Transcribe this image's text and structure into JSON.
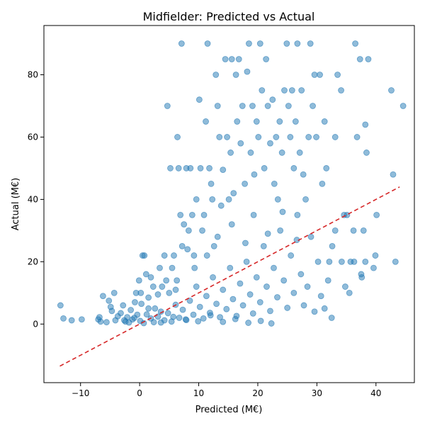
{
  "chart_data": {
    "type": "scatter",
    "title": "Midfielder: Predicted vs Actual",
    "xlabel": "Predicted (M€)",
    "ylabel": "Actual (M€)",
    "xlim": [
      -16.2,
      46.5
    ],
    "ylim": [
      -18.8,
      95.8
    ],
    "xticks": [
      -10,
      0,
      10,
      20,
      30,
      40
    ],
    "yticks": [
      0,
      20,
      40,
      60,
      80
    ],
    "grid": false,
    "legend": "none",
    "colors": {
      "points": "#1f77b4",
      "reference": "#d62728"
    },
    "reference_line": {
      "x": [
        -13.5,
        44
      ],
      "y": [
        -13.5,
        44
      ]
    },
    "series": [
      {
        "points": [
          [
            -13.4,
            6
          ],
          [
            -12.9,
            1.8
          ],
          [
            -11.5,
            1.2
          ],
          [
            -9.8,
            1.5
          ],
          [
            -7,
            1.5
          ],
          [
            -6.6,
            0.8
          ],
          [
            -6.8,
            2.2
          ],
          [
            -6.2,
            9
          ],
          [
            -5.6,
            0.6
          ],
          [
            -5.2,
            7.5
          ],
          [
            -4.9,
            5.5
          ],
          [
            -4.7,
            4.2
          ],
          [
            -4.3,
            10
          ],
          [
            -4.1,
            1.2
          ],
          [
            -3.7,
            2.5
          ],
          [
            -3.2,
            3.5
          ],
          [
            -2.8,
            6
          ],
          [
            -2.4,
            0.8
          ],
          [
            -2.1,
            2.2
          ],
          [
            -1.5,
            4.5
          ],
          [
            -1.2,
            1.5
          ],
          [
            -0.8,
            7
          ],
          [
            -0.6,
            10
          ],
          [
            -0.4,
            3
          ],
          [
            -0.1,
            14
          ],
          [
            0.2,
            10
          ],
          [
            0.3,
            6.5
          ],
          [
            0.5,
            22
          ],
          [
            0.8,
            22
          ],
          [
            1.1,
            16
          ],
          [
            1.5,
            8.5
          ],
          [
            1.9,
            15
          ],
          [
            2.3,
            12
          ],
          [
            2.6,
            5
          ],
          [
            3.1,
            9.5
          ],
          [
            3.4,
            18
          ],
          [
            3.8,
            12
          ],
          [
            4.2,
            22
          ],
          [
            4.5,
            14
          ],
          [
            4.7,
            70
          ],
          [
            5.2,
            50
          ],
          [
            5.5,
            18
          ],
          [
            5.8,
            22
          ],
          [
            6.1,
            11
          ],
          [
            6.4,
            60
          ],
          [
            6.6,
            50
          ],
          [
            6.9,
            35
          ],
          [
            7.1,
            90
          ],
          [
            7.2,
            25
          ],
          [
            7.5,
            32
          ],
          [
            7.9,
            50
          ],
          [
            8.3,
            30
          ],
          [
            8.6,
            50
          ],
          [
            8.9,
            35
          ],
          [
            9.2,
            22
          ],
          [
            9.6,
            40
          ],
          [
            10.1,
            72
          ],
          [
            10.3,
            50
          ],
          [
            10.6,
            30
          ],
          [
            10.9,
            35
          ],
          [
            11.2,
            65
          ],
          [
            11.5,
            90
          ],
          [
            11.8,
            50
          ],
          [
            12.1,
            45
          ],
          [
            12.3,
            40
          ],
          [
            12.6,
            25
          ],
          [
            12.9,
            80
          ],
          [
            13.2,
            70
          ],
          [
            13.5,
            60
          ],
          [
            13.8,
            38
          ],
          [
            14.1,
            49.5
          ],
          [
            14.5,
            85
          ],
          [
            14.8,
            60
          ],
          [
            15.1,
            40
          ],
          [
            15.4,
            55
          ],
          [
            15.6,
            85
          ],
          [
            15.9,
            42
          ],
          [
            16.3,
            80
          ],
          [
            16.5,
            65
          ],
          [
            16.8,
            85
          ],
          [
            17.1,
            58
          ],
          [
            17.4,
            70
          ],
          [
            17.8,
            45
          ],
          [
            18.2,
            81
          ],
          [
            18.5,
            90
          ],
          [
            18.8,
            55
          ],
          [
            19.1,
            70
          ],
          [
            19.4,
            48
          ],
          [
            19.8,
            65
          ],
          [
            20.1,
            60
          ],
          [
            20.4,
            90
          ],
          [
            20.7,
            75
          ],
          [
            21.1,
            50
          ],
          [
            21.4,
            85
          ],
          [
            21.7,
            70
          ],
          [
            22.1,
            58
          ],
          [
            22.5,
            72
          ],
          [
            22.8,
            45
          ],
          [
            23.1,
            60
          ],
          [
            23.4,
            40
          ],
          [
            23.7,
            65
          ],
          [
            24.1,
            55
          ],
          [
            24.5,
            75
          ],
          [
            24.9,
            90
          ],
          [
            25.2,
            70
          ],
          [
            25.5,
            60
          ],
          [
            25.8,
            75
          ],
          [
            26.1,
            50
          ],
          [
            26.4,
            65
          ],
          [
            26.7,
            90
          ],
          [
            27.1,
            55
          ],
          [
            27.4,
            75
          ],
          [
            27.7,
            48
          ],
          [
            28.1,
            40
          ],
          [
            28.6,
            60
          ],
          [
            28.9,
            90
          ],
          [
            29.3,
            70
          ],
          [
            29.6,
            80
          ],
          [
            29.9,
            60
          ],
          [
            30.5,
            80
          ],
          [
            30.9,
            45
          ],
          [
            31.3,
            65
          ],
          [
            31.6,
            50
          ],
          [
            32.1,
            20
          ],
          [
            32.6,
            25
          ],
          [
            33.1,
            60
          ],
          [
            33.5,
            80
          ],
          [
            34.1,
            75
          ],
          [
            34.6,
            35
          ],
          [
            35.1,
            35
          ],
          [
            35.7,
            20
          ],
          [
            36.2,
            30
          ],
          [
            36.5,
            90
          ],
          [
            36.8,
            60
          ],
          [
            37.3,
            85
          ],
          [
            37.6,
            15
          ],
          [
            37.9,
            30
          ],
          [
            38.2,
            64
          ],
          [
            38.4,
            55
          ],
          [
            38.7,
            85
          ],
          [
            39.6,
            18
          ],
          [
            40.1,
            35
          ],
          [
            42.6,
            75
          ],
          [
            42.9,
            48
          ],
          [
            43.3,
            20
          ],
          [
            44.6,
            70
          ],
          [
            -2.6,
            1.2
          ],
          [
            -1.8,
            0.5
          ],
          [
            -0.9,
            2
          ],
          [
            0.1,
            1
          ],
          [
            0.7,
            0.3
          ],
          [
            1.2,
            3.1
          ],
          [
            1.9,
            1.8
          ],
          [
            2.4,
            0.6
          ],
          [
            3.1,
            2.4
          ],
          [
            3.6,
            4
          ],
          [
            4.2,
            1.2
          ],
          [
            4.8,
            3.5
          ],
          [
            5.4,
            0.8
          ],
          [
            6.1,
            6.2
          ],
          [
            6.7,
            2
          ],
          [
            7.3,
            4.6
          ],
          [
            7.9,
            1.3
          ],
          [
            8.5,
            7.5
          ],
          [
            9.1,
            3
          ],
          [
            9.6,
            12
          ],
          [
            10.2,
            5.5
          ],
          [
            10.8,
            1.8
          ],
          [
            11.3,
            9
          ],
          [
            11.9,
            3.6
          ],
          [
            12.4,
            15
          ],
          [
            13,
            6.5
          ],
          [
            13.6,
            2.2
          ],
          [
            14.1,
            11
          ],
          [
            14.7,
            4.8
          ],
          [
            15.3,
            18
          ],
          [
            15.8,
            8
          ],
          [
            16.4,
            2.6
          ],
          [
            17,
            13
          ],
          [
            17.5,
            6
          ],
          [
            18.1,
            20
          ],
          [
            18.7,
            9.5
          ],
          [
            19.2,
            3.4
          ],
          [
            19.8,
            15
          ],
          [
            20.4,
            7
          ],
          [
            21,
            25
          ],
          [
            21.5,
            12
          ],
          [
            22.1,
            4.2
          ],
          [
            22.7,
            18
          ],
          [
            23.3,
            8.6
          ],
          [
            23.8,
            30
          ],
          [
            24.4,
            14
          ],
          [
            25,
            5.2
          ],
          [
            25.6,
            22
          ],
          [
            26.1,
            10
          ],
          [
            26.7,
            35
          ],
          [
            27.3,
            16
          ],
          [
            27.8,
            6
          ],
          [
            28.4,
            12
          ],
          [
            29,
            28
          ],
          [
            29.6,
            4
          ],
          [
            30.2,
            20
          ],
          [
            30.7,
            9
          ],
          [
            31.3,
            5
          ],
          [
            31.9,
            14
          ],
          [
            32.5,
            2
          ],
          [
            33.1,
            30
          ],
          [
            34.2,
            20
          ],
          [
            34.8,
            12
          ],
          [
            35.5,
            10
          ],
          [
            36.3,
            20
          ],
          [
            37.5,
            16
          ],
          [
            38.2,
            20
          ],
          [
            39.9,
            22
          ],
          [
            22.3,
            0.2
          ],
          [
            20.5,
            1
          ],
          [
            18.4,
            0.4
          ],
          [
            16.2,
            1.6
          ],
          [
            14.1,
            0.7
          ],
          [
            12,
            2.8
          ],
          [
            9.9,
            0.9
          ],
          [
            7.8,
            1.5
          ],
          [
            5.7,
            2.3
          ],
          [
            3.6,
            0.5
          ],
          [
            1.5,
            5
          ],
          [
            13.2,
            28
          ],
          [
            15.6,
            32
          ],
          [
            17.9,
            26
          ],
          [
            19.3,
            35
          ],
          [
            21.7,
            29
          ],
          [
            24.2,
            36
          ],
          [
            26.6,
            27
          ],
          [
            11.4,
            22
          ],
          [
            9.3,
            18
          ],
          [
            8.1,
            24
          ],
          [
            6.3,
            14
          ],
          [
            5,
            10
          ]
        ]
      }
    ]
  }
}
